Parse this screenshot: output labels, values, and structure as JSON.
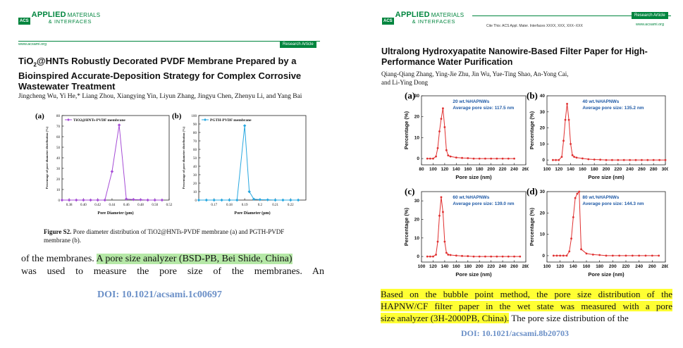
{
  "left": {
    "logo": {
      "acs": "ACS",
      "name1": "APPLIED",
      "name1b": "MATERIALS",
      "name2": "& INTERFACES"
    },
    "url": "www.acsami.org",
    "badge": "Research Article",
    "title_line1_pre": "TiO",
    "title_line1_sub": "2",
    "title_line1_post": "@HNTs Robustly Decorated PVDF Membrane Prepared by a",
    "title_line2": "Bioinspired Accurate-Deposition Strategy for Complex Corrosive",
    "title_line3": "Wastewater Treatment",
    "authors": "Jingcheng Wu, Yi He,* Liang Zhou, Xiangying Yin, Liyun Zhang, Jingyu Chen, Zhenyu Li, and Yang Bai",
    "fig_a_label": "(a)",
    "fig_b_label": "(b)",
    "caption_bold": "Figure S2.",
    "caption_text": "Pore diameter distribution of TiO2@HNTs-PVDF membrane (a) and PGTH-PVDF membrane (b).",
    "body_pre": "of the membranes.",
    "body_hl": "A pore size analyzer (BSD-PB, Bei Shide, China)",
    "body_line2": "was used to measure the pore size of the membranes. An",
    "doi": "DOI: 10.1021/acsami.1c00697"
  },
  "right": {
    "logo": {
      "acs": "ACS",
      "name1": "APPLIED",
      "name1b": "MATERIALS",
      "name2": "& INTERFACES"
    },
    "badge": "Research Article",
    "cite": "Cite This: ACS Appl. Mater. Interfaces XXXX, XXX, XXX−XXX",
    "url": "www.acsami.org",
    "title_line1": "Ultralong Hydroxyapatite Nanowire-Based Filter Paper for High-",
    "title_line2": "Performance Water Purification",
    "authors_line1": "Qiang-Qiang Zhang, Ying-Jie Zhu, Jin Wu, Yue-Ting Shao, An-Yong Cai,",
    "authors_line2": "and Li-Ying Dong",
    "panel_labels": [
      "(a)",
      "(b)",
      "(c)",
      "(d)"
    ],
    "body_line1": "Based on the bubble point method, the pore size distribution of the",
    "body_line2": "HAPNW/CF filter paper in the wet state was measured with a pore",
    "body_line3_hl": "size analyzer (3H-2000PB, China).",
    "body_line3_post": "The pore size distribution of the",
    "doi": "DOI: 10.1021/acsami.8b20703"
  },
  "chart_data": [
    {
      "type": "line",
      "legend": "TiO2@HNTs-PVDF membrane",
      "color": "#a64dd6",
      "xlabel": "Pore Diameter (μm)",
      "ylabel": "Percentage of pore diameter distribution (%)",
      "xlim": [
        0.37,
        0.52
      ],
      "ylim": [
        0,
        80
      ],
      "xticks": [
        0.38,
        0.4,
        0.42,
        0.44,
        0.46,
        0.48,
        0.5,
        0.52
      ],
      "yticks": [
        0,
        10,
        20,
        30,
        40,
        50,
        60,
        70,
        80
      ],
      "x": [
        0.37,
        0.38,
        0.39,
        0.4,
        0.41,
        0.42,
        0.43,
        0.44,
        0.45,
        0.46,
        0.47,
        0.48,
        0.49,
        0.5,
        0.51
      ],
      "y": [
        0,
        0,
        0,
        0,
        0,
        0,
        0,
        27,
        71,
        1,
        0.5,
        0.3,
        0,
        0,
        0
      ]
    },
    {
      "type": "line",
      "legend": "PGTH-PVDF membrane",
      "color": "#29a8e0",
      "xlabel": "Pore Diameter (μm)",
      "ylabel": "Percentage of pore diameter distribution (%)",
      "xlim": [
        0.16,
        0.23
      ],
      "ylim": [
        0,
        100
      ],
      "xticks": [
        0.17,
        0.18,
        0.19,
        0.2,
        0.21,
        0.22
      ],
      "yticks": [
        0,
        10,
        20,
        30,
        40,
        50,
        60,
        70,
        80,
        90,
        100
      ],
      "x": [
        0.16,
        0.165,
        0.17,
        0.175,
        0.18,
        0.185,
        0.19,
        0.193,
        0.196,
        0.2,
        0.205,
        0.21,
        0.215,
        0.22,
        0.225
      ],
      "y": [
        0,
        0,
        0,
        0,
        0,
        0,
        88,
        10,
        1,
        0.5,
        0.3,
        0,
        0,
        0,
        0
      ]
    },
    {
      "type": "line",
      "annotation1": "20 wt.%HAPNWs",
      "annotation2": "Average pore size: 117.5 nm",
      "color": "#e03030",
      "xlabel": "Pore size (nm)",
      "ylabel": "Percentage (%)",
      "xlim": [
        80,
        260
      ],
      "ylim": [
        -3,
        30
      ],
      "xticks": [
        80,
        100,
        120,
        140,
        160,
        180,
        200,
        220,
        240,
        260
      ],
      "yticks": [
        0,
        10,
        20,
        30
      ],
      "x": [
        90,
        95,
        100,
        105,
        108,
        111,
        114,
        117,
        120,
        123,
        126,
        130,
        140,
        150,
        160,
        170,
        180,
        190,
        200,
        210,
        220,
        230,
        240
      ],
      "y": [
        0,
        0,
        0,
        1,
        5,
        13,
        19,
        24,
        15,
        4,
        1.5,
        1,
        0.5,
        0.3,
        0.2,
        0,
        0,
        0,
        0,
        0,
        0,
        0,
        0
      ]
    },
    {
      "type": "line",
      "annotation1": "40 wt.%HAPNWs",
      "annotation2": "Average pore size: 135.2 nm",
      "color": "#e03030",
      "xlabel": "Pore size (nm)",
      "ylabel": "Percentage (%)",
      "xlim": [
        100,
        300
      ],
      "ylim": [
        -3,
        40
      ],
      "xticks": [
        100,
        120,
        140,
        160,
        180,
        200,
        220,
        240,
        260,
        280,
        300
      ],
      "yticks": [
        0,
        10,
        20,
        30,
        40
      ],
      "x": [
        110,
        115,
        120,
        125,
        128,
        131,
        134,
        137,
        140,
        143,
        146,
        150,
        160,
        170,
        180,
        190,
        200,
        210,
        220,
        230,
        240,
        250,
        260,
        270,
        280,
        290,
        300
      ],
      "y": [
        0,
        0,
        0,
        2,
        12,
        25,
        35,
        25,
        10,
        3,
        2,
        1.5,
        1,
        0.5,
        0.3,
        0.2,
        0,
        0,
        0,
        0,
        0,
        0,
        0,
        0,
        0,
        0,
        0
      ]
    },
    {
      "type": "line",
      "annotation1": "60 wt.%HAPNWs",
      "annotation2": "Average pore size: 139.0 nm",
      "color": "#e03030",
      "xlabel": "Pore size (nm)",
      "ylabel": "Percentage (%)",
      "xlim": [
        100,
        280
      ],
      "ylim": [
        -3,
        35
      ],
      "xticks": [
        100,
        120,
        140,
        160,
        180,
        200,
        220,
        240,
        260,
        280
      ],
      "yticks": [
        0,
        10,
        20,
        30
      ],
      "x": [
        110,
        115,
        120,
        125,
        128,
        131,
        134,
        137,
        140,
        143,
        146,
        150,
        160,
        170,
        180,
        190,
        200,
        210,
        220,
        230,
        240,
        250,
        260,
        270
      ],
      "y": [
        0,
        0,
        0,
        1,
        8,
        22,
        32,
        24,
        8,
        2,
        1,
        0.8,
        0.5,
        0.3,
        0.2,
        0,
        0,
        0,
        0,
        0,
        0,
        0,
        0,
        0
      ]
    },
    {
      "type": "line",
      "annotation1": "80 wt.%HAPNWs",
      "annotation2": "Average pore size: 144.3 nm",
      "color": "#e03030",
      "xlabel": "Pore size (nm)",
      "ylabel": "Percentage (%)",
      "xlim": [
        100,
        280
      ],
      "ylim": [
        -3,
        30
      ],
      "xticks": [
        100,
        120,
        140,
        160,
        180,
        200,
        220,
        240,
        260,
        280
      ],
      "yticks": [
        0,
        10,
        20,
        30
      ],
      "x": [
        110,
        115,
        120,
        125,
        130,
        134,
        137,
        140,
        143,
        146,
        149,
        152,
        160,
        170,
        180,
        190,
        200,
        210,
        220,
        230,
        240,
        250,
        260,
        270
      ],
      "y": [
        0,
        0,
        0,
        0,
        0,
        2,
        8,
        18,
        27,
        29,
        30,
        3,
        1,
        0.5,
        0.3,
        0,
        0,
        0,
        0,
        0,
        0,
        0,
        0,
        0
      ]
    }
  ]
}
